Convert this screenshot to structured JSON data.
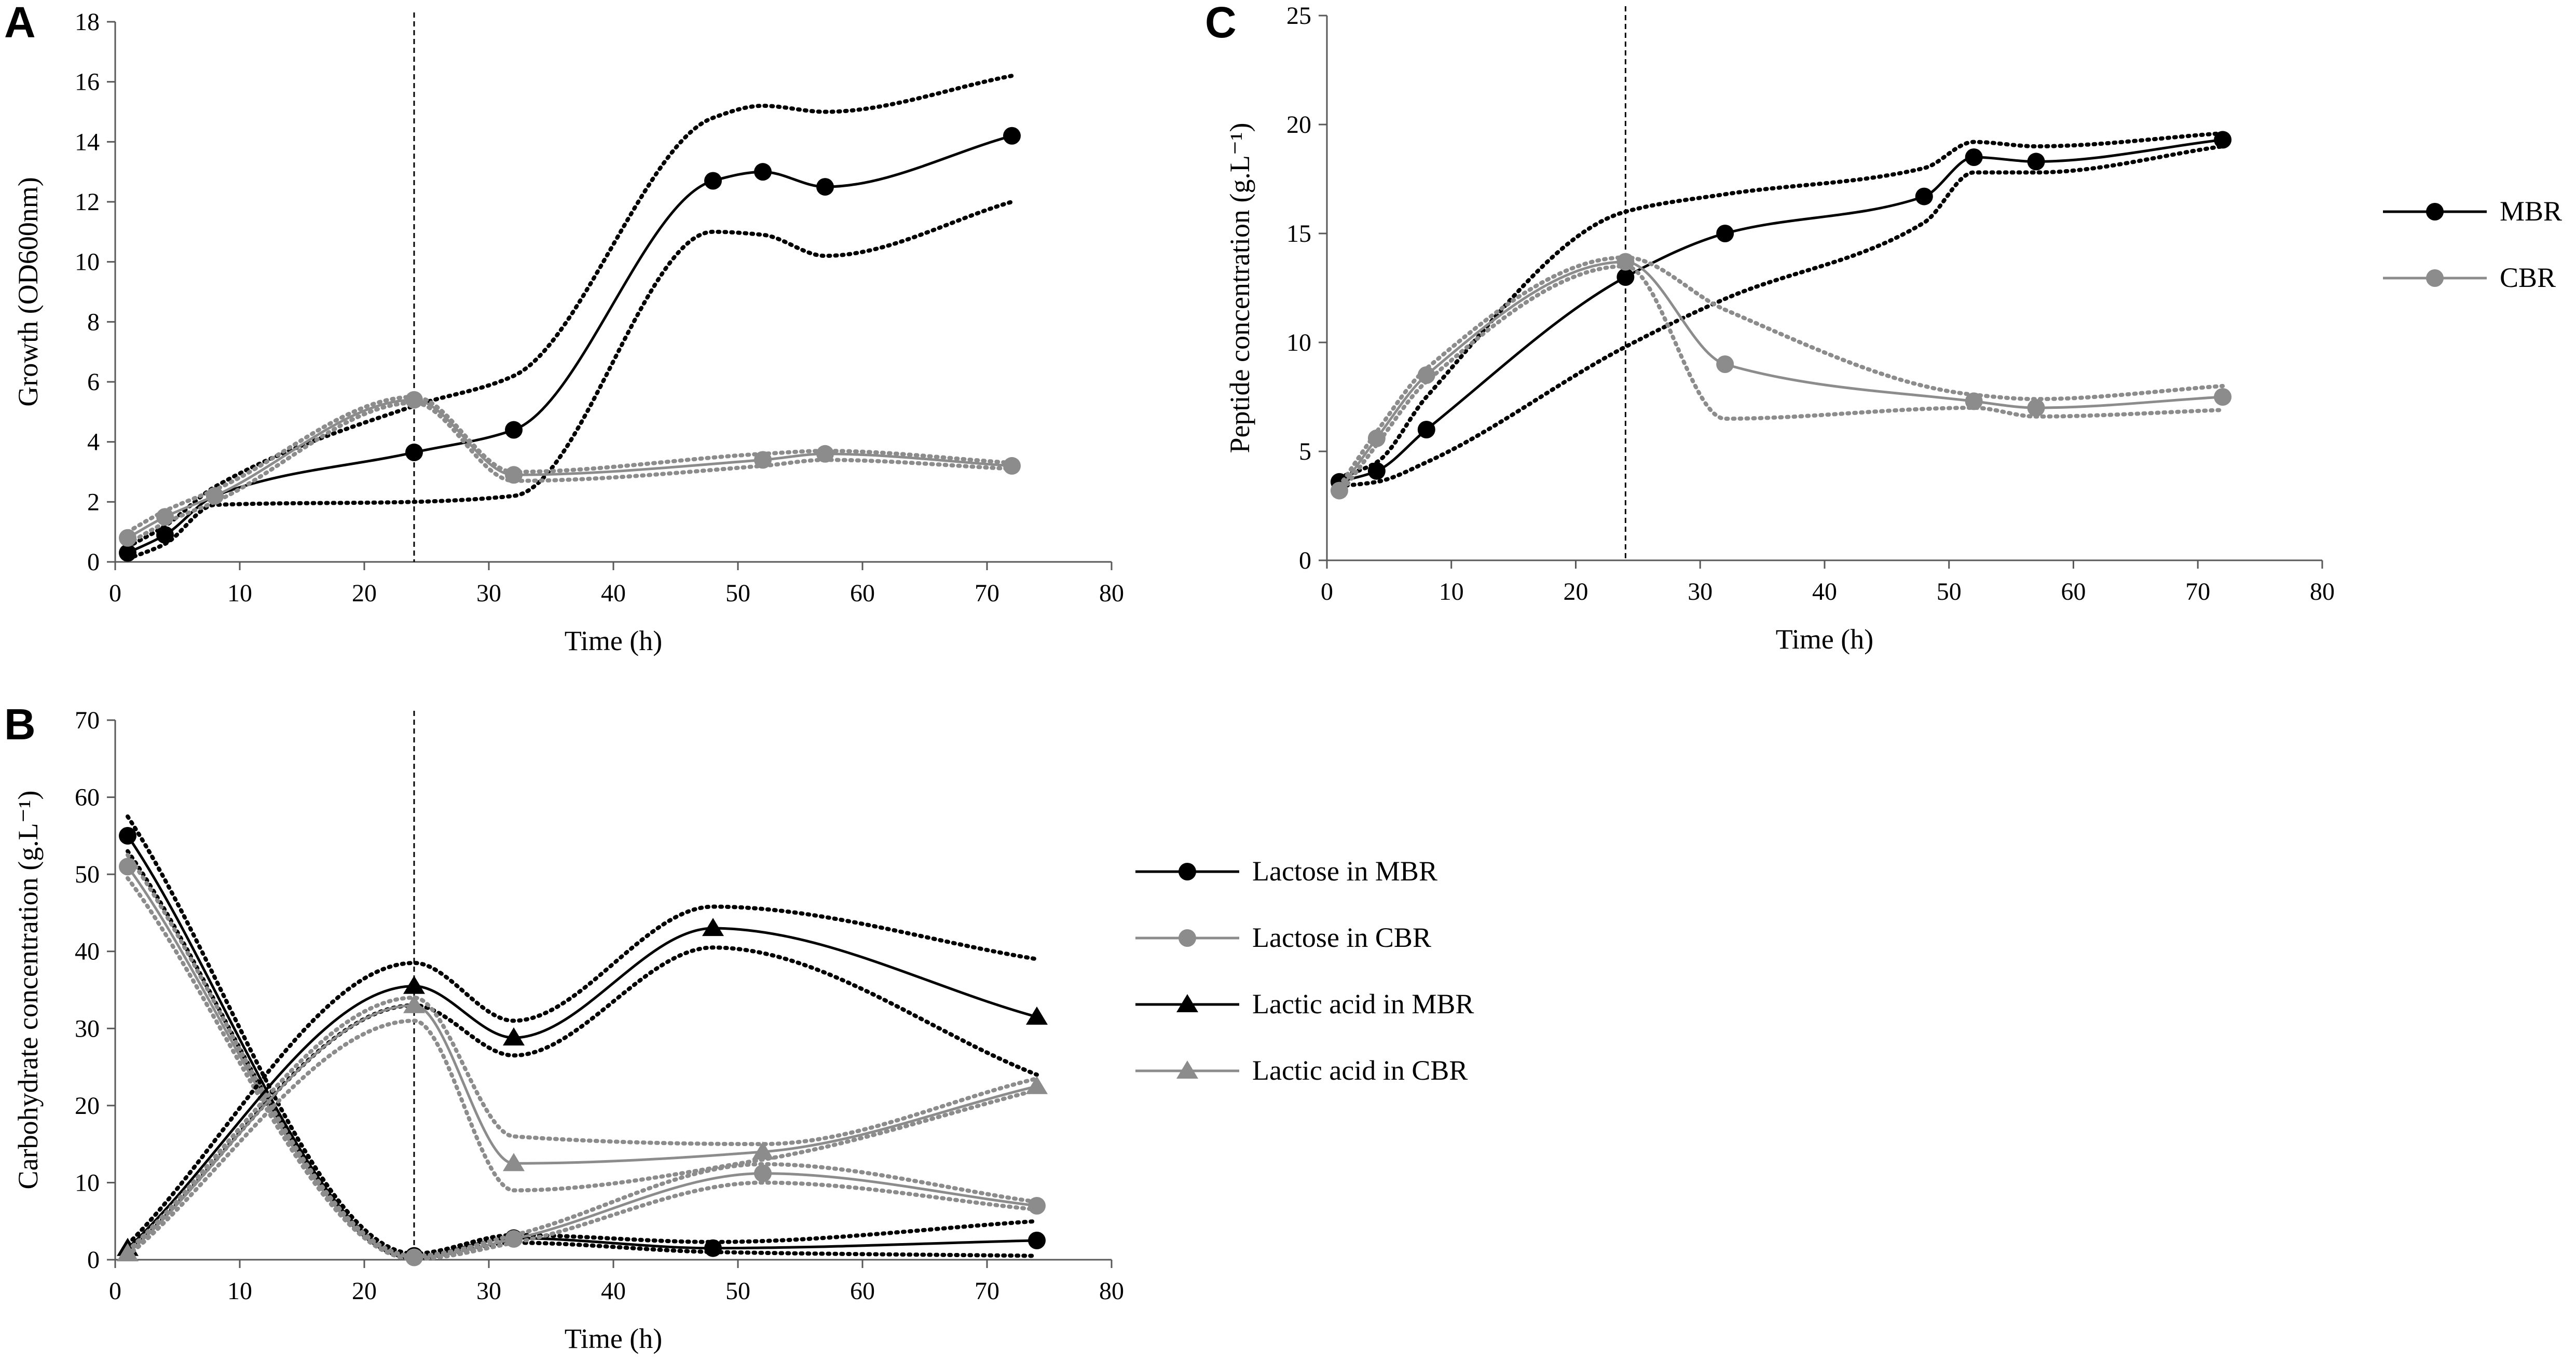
{
  "colors": {
    "mbr": "#000000",
    "cbr": "#8c8c8c",
    "axis": "#595959",
    "marker_line": "#000000"
  },
  "chart_data": [
    {
      "panel": "A",
      "type": "line",
      "title": "",
      "xlabel": "Time (h)",
      "ylabel": "Growth (OD600nm)",
      "xlim": [
        0,
        80
      ],
      "ylim": [
        0,
        18
      ],
      "xticks": [
        0,
        10,
        20,
        30,
        40,
        50,
        60,
        70,
        80
      ],
      "yticks": [
        0,
        2,
        4,
        6,
        8,
        10,
        12,
        14,
        16,
        18
      ],
      "vline_x": 24,
      "legend": "none",
      "series": [
        {
          "name": "MBR",
          "color": "mbr",
          "marker": "circle",
          "x": [
            1,
            4,
            8,
            24,
            32,
            48,
            52,
            57,
            72
          ],
          "y": [
            0.3,
            0.9,
            2.2,
            3.65,
            4.4,
            12.7,
            13.0,
            12.5,
            14.2
          ],
          "lower": [
            0.1,
            0.6,
            1.9,
            2.0,
            2.2,
            11.0,
            10.9,
            10.2,
            12.0
          ],
          "upper": [
            0.5,
            1.2,
            2.5,
            5.2,
            6.2,
            14.8,
            15.2,
            15.0,
            16.2
          ]
        },
        {
          "name": "CBR",
          "color": "cbr",
          "marker": "circle",
          "x": [
            1,
            4,
            8,
            24,
            32,
            52,
            57,
            72
          ],
          "y": [
            0.8,
            1.5,
            2.2,
            5.4,
            2.9,
            3.4,
            3.6,
            3.2
          ],
          "lower": [
            0.6,
            1.3,
            2.0,
            5.3,
            2.7,
            3.2,
            3.4,
            3.1
          ],
          "upper": [
            1.0,
            1.7,
            2.4,
            5.5,
            3.0,
            3.6,
            3.7,
            3.3
          ]
        }
      ]
    },
    {
      "panel": "B",
      "type": "line",
      "title": "",
      "xlabel": "Time (h)",
      "ylabel": "Carbohydrate concentration (g.L⁻¹)",
      "xlim": [
        0,
        80
      ],
      "ylim": [
        0,
        70
      ],
      "xticks": [
        0,
        10,
        20,
        30,
        40,
        50,
        60,
        70,
        80
      ],
      "yticks": [
        0,
        10,
        20,
        30,
        40,
        50,
        60,
        70
      ],
      "vline_x": 24,
      "legend": "right",
      "series": [
        {
          "name": "Lactose in MBR",
          "color": "mbr",
          "marker": "circle",
          "x": [
            1,
            24,
            32,
            48,
            74
          ],
          "y": [
            55,
            0.5,
            2.8,
            1.5,
            2.5
          ],
          "lower": [
            53,
            0.2,
            2.2,
            1.0,
            0.5
          ],
          "upper": [
            57.5,
            0.8,
            3.2,
            2.3,
            5.0
          ]
        },
        {
          "name": "Lactose in CBR",
          "color": "cbr",
          "marker": "circle",
          "x": [
            1,
            24,
            32,
            52,
            74
          ],
          "y": [
            51,
            0.3,
            2.7,
            11.2,
            7.0
          ],
          "lower": [
            49.5,
            0.1,
            2.2,
            10.0,
            6.5
          ],
          "upper": [
            52.5,
            0.5,
            3.2,
            12.4,
            7.5
          ]
        },
        {
          "name": "Lactic acid in MBR",
          "color": "mbr",
          "marker": "triangle",
          "x": [
            1,
            24,
            32,
            48,
            74
          ],
          "y": [
            1.5,
            35.5,
            28.8,
            43.0,
            31.5
          ],
          "lower": [
            1.0,
            33.0,
            26.5,
            40.5,
            24.0
          ],
          "upper": [
            2.0,
            38.5,
            31.0,
            45.8,
            39.0
          ]
        },
        {
          "name": "Lactic acid in CBR",
          "color": "cbr",
          "marker": "triangle",
          "x": [
            1,
            24,
            32,
            52,
            74
          ],
          "y": [
            0.8,
            33.0,
            12.5,
            14.0,
            22.5
          ],
          "lower": [
            0.5,
            31.0,
            9.0,
            13.0,
            22.0
          ],
          "upper": [
            1.2,
            34.0,
            16.0,
            15.0,
            23.5
          ]
        }
      ]
    },
    {
      "panel": "C",
      "type": "line",
      "title": "",
      "xlabel": "Time (h)",
      "ylabel": "Peptide concentration (g.L⁻¹)",
      "xlim": [
        0,
        80
      ],
      "ylim": [
        0,
        25
      ],
      "xticks": [
        0,
        10,
        20,
        30,
        40,
        50,
        60,
        70,
        80
      ],
      "yticks": [
        0,
        5,
        10,
        15,
        20,
        25
      ],
      "vline_x": 24,
      "legend": "right",
      "series": [
        {
          "name": "MBR",
          "color": "mbr",
          "marker": "circle",
          "x": [
            1,
            4,
            8,
            24,
            32,
            48,
            52,
            57,
            72
          ],
          "y": [
            3.6,
            4.1,
            6.0,
            13.0,
            15.0,
            16.7,
            18.5,
            18.3,
            19.3
          ],
          "lower": [
            3.4,
            3.6,
            4.5,
            9.8,
            12.0,
            15.5,
            17.8,
            17.8,
            19.0
          ],
          "upper": [
            3.8,
            4.5,
            7.5,
            16.0,
            16.8,
            18.0,
            19.2,
            19.0,
            19.6
          ]
        },
        {
          "name": "CBR",
          "color": "cbr",
          "marker": "circle",
          "x": [
            1,
            4,
            8,
            24,
            32,
            52,
            57,
            72
          ],
          "y": [
            3.2,
            5.6,
            8.5,
            13.7,
            9.0,
            7.3,
            7.0,
            7.5
          ],
          "lower": [
            3.0,
            5.3,
            8.2,
            13.5,
            6.5,
            7.0,
            6.6,
            6.9
          ],
          "upper": [
            3.4,
            5.9,
            8.8,
            13.9,
            11.5,
            7.6,
            7.4,
            8.0
          ]
        }
      ]
    }
  ]
}
